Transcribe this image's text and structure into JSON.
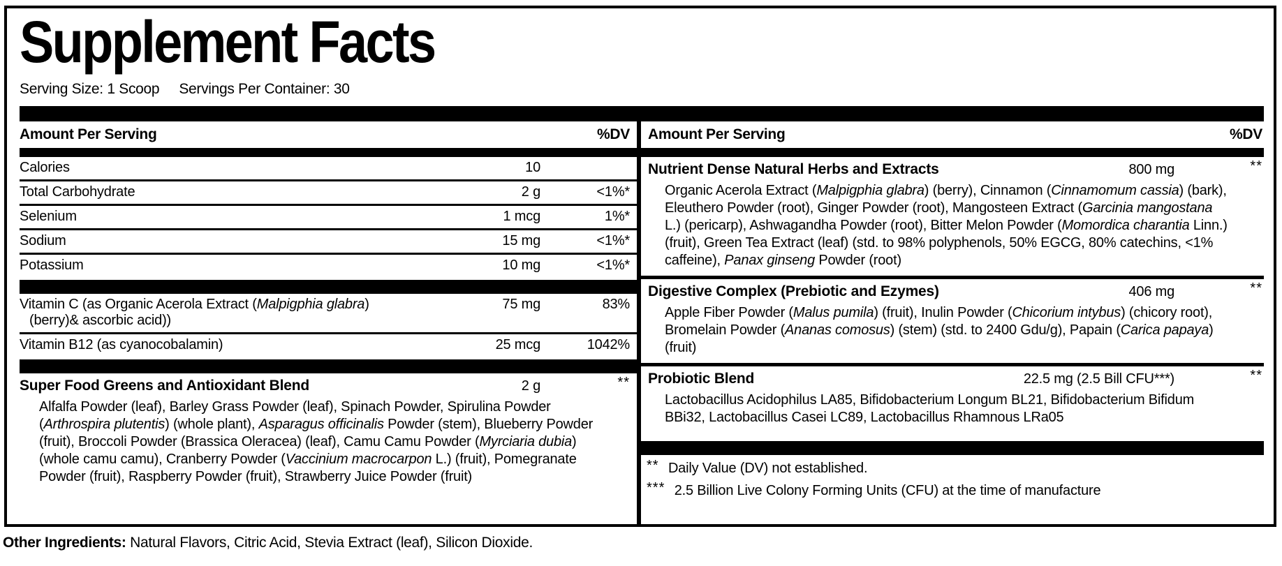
{
  "title": "Supplement Facts",
  "serving": {
    "size": "Serving Size: 1 Scoop",
    "per_container": "Servings Per Container: 30"
  },
  "left": {
    "header": {
      "label": "Amount Per Serving",
      "dv": "%DV"
    },
    "rows": [
      {
        "name": "Calories",
        "amount": "10",
        "dv": ""
      },
      {
        "name": "Total Carbohydrate",
        "amount": "2 g",
        "dv": "<1%*"
      },
      {
        "name": "Selenium",
        "amount": "1 mcg",
        "dv": "1%*"
      },
      {
        "name": "Sodium",
        "amount": "15 mg",
        "dv": "<1%*"
      },
      {
        "name": "Potassium",
        "amount": "10 mg",
        "dv": "<1%*"
      }
    ],
    "vitamin_c": {
      "name_line1": [
        {
          "t": "Vitamin C (as Organic Acerola Extract ("
        },
        {
          "t": "Malpigphia glabra",
          "i": true
        },
        {
          "t": ")"
        }
      ],
      "name_line2": "(berry)& ascorbic acid))",
      "amount": "75 mg",
      "dv": "83%"
    },
    "vitamin_b12": {
      "name": "Vitamin B12 (as cyanocobalamin)",
      "amount": "25 mcg",
      "dv": "1042%"
    },
    "blend": {
      "name": "Super Food Greens and Antioxidant Blend",
      "amount": "2 g",
      "dv": "**",
      "ingredients": [
        {
          "t": "Alfalfa Powder (leaf), Barley Grass Powder (leaf), Spinach Powder, Spirulina Powder ("
        },
        {
          "t": "Arthrospira plutentis",
          "i": true
        },
        {
          "t": ") (whole plant), "
        },
        {
          "t": "Asparagus officinalis",
          "i": true
        },
        {
          "t": " Powder (stem), Blueberry Powder (fruit), Broccoli Powder (Brassica Oleracea) (leaf), Camu Camu Powder ("
        },
        {
          "t": "Myrciaria dubia",
          "i": true
        },
        {
          "t": ") (whole camu camu), Cranberry Powder ("
        },
        {
          "t": "Vaccinium macrocarpon",
          "i": true
        },
        {
          "t": " L.) (fruit), Pomegranate Powder (fruit), Raspberry Powder (fruit), Strawberry Juice Powder (fruit)"
        }
      ]
    }
  },
  "right": {
    "header": {
      "label": "Amount Per Serving",
      "dv": "%DV"
    },
    "sections": [
      {
        "name": "Nutrient Dense Natural Herbs and Extracts",
        "amount": "800 mg",
        "dv": "**",
        "ingredients": [
          {
            "t": "Organic Acerola Extract ("
          },
          {
            "t": "Malpigphia glabra",
            "i": true
          },
          {
            "t": ") (berry), Cinnamon ("
          },
          {
            "t": "Cinnamomum cassia",
            "i": true
          },
          {
            "t": ") (bark), Eleuthero Powder (root), Ginger Powder (root), Mangosteen Extract ("
          },
          {
            "t": "Garcinia mangostana",
            "i": true
          },
          {
            "t": " L.) (pericarp), Ashwagandha Powder (root), Bitter Melon Powder ("
          },
          {
            "t": "Momordica charantia",
            "i": true
          },
          {
            "t": " Linn.) (fruit), Green Tea Extract (leaf) (std. to 98% polyphenols, 50% EGCG, 80% catechins, <1% caffeine), "
          },
          {
            "t": "Panax ginseng",
            "i": true
          },
          {
            "t": " Powder (root)"
          }
        ]
      },
      {
        "name": "Digestive Complex (Prebiotic and Ezymes)",
        "amount": "406 mg",
        "dv": "**",
        "ingredients": [
          {
            "t": "Apple Fiber Powder ("
          },
          {
            "t": "Malus pumila",
            "i": true
          },
          {
            "t": ") (fruit), Inulin Powder ("
          },
          {
            "t": "Chicorium intybus",
            "i": true
          },
          {
            "t": ") (chicory root), Bromelain Powder ("
          },
          {
            "t": "Ananas comosus",
            "i": true
          },
          {
            "t": ") (stem) (std. to 2400 Gdu/g), Papain ("
          },
          {
            "t": "Carica papaya",
            "i": true
          },
          {
            "t": ") (fruit)"
          }
        ]
      },
      {
        "name": "Probiotic Blend",
        "amount": "22.5 mg (2.5 Bill CFU***)",
        "dv": "**",
        "ingredients": [
          {
            "t": "Lactobacillus Acidophilus LA85, Bifidobacterium Longum BL21, Bifidobacterium Bifidum BBi32, Lactobacillus Casei LC89, Lactobacillus Rhamnous LRa05"
          }
        ]
      }
    ],
    "footnotes": [
      {
        "marker": "**",
        "text": "Daily Value (DV) not established."
      },
      {
        "marker": "***",
        "text": "2.5 Billion Live Colony Forming Units (CFU) at the time of manufacture"
      }
    ]
  },
  "other_ingredients": {
    "label": "Other Ingredients:",
    "text": "Natural Flavors, Citric Acid, Stevia Extract (leaf), Silicon Dioxide."
  },
  "colors": {
    "ink": "#000000",
    "paper": "#ffffff"
  }
}
